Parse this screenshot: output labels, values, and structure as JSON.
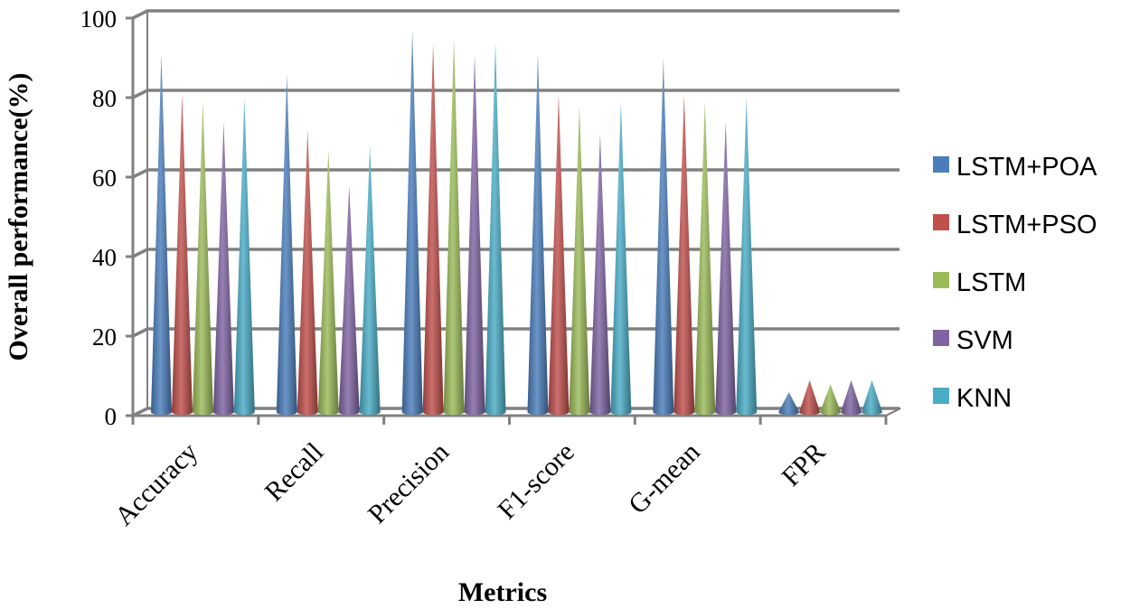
{
  "chart_data": {
    "type": "bar",
    "style": "3d-cone",
    "title": "",
    "xlabel": "Metrics",
    "ylabel": "Overall performance(%)",
    "ylim": [
      0,
      100
    ],
    "yticks": [
      0,
      20,
      40,
      60,
      80,
      100
    ],
    "grid": true,
    "legend_position": "right",
    "categories": [
      "Accuracy",
      "Recall",
      "Precision",
      "F1-score",
      "G-mean",
      "FPR"
    ],
    "series": [
      {
        "name": "LSTM+POA",
        "color": "#4a7ebb",
        "values": [
          90,
          85,
          96,
          90,
          89,
          5
        ]
      },
      {
        "name": "LSTM+PSO",
        "color": "#c0504d",
        "values": [
          80,
          71,
          93,
          80,
          80,
          8
        ]
      },
      {
        "name": "LSTM",
        "color": "#9bbb59",
        "values": [
          78,
          66,
          94,
          77,
          78,
          7
        ]
      },
      {
        "name": "SVM",
        "color": "#8064a2",
        "values": [
          73,
          57,
          90,
          70,
          73,
          8
        ]
      },
      {
        "name": "KNN",
        "color": "#4bacc6",
        "values": [
          79,
          67,
          93,
          78,
          79,
          8
        ]
      }
    ]
  }
}
